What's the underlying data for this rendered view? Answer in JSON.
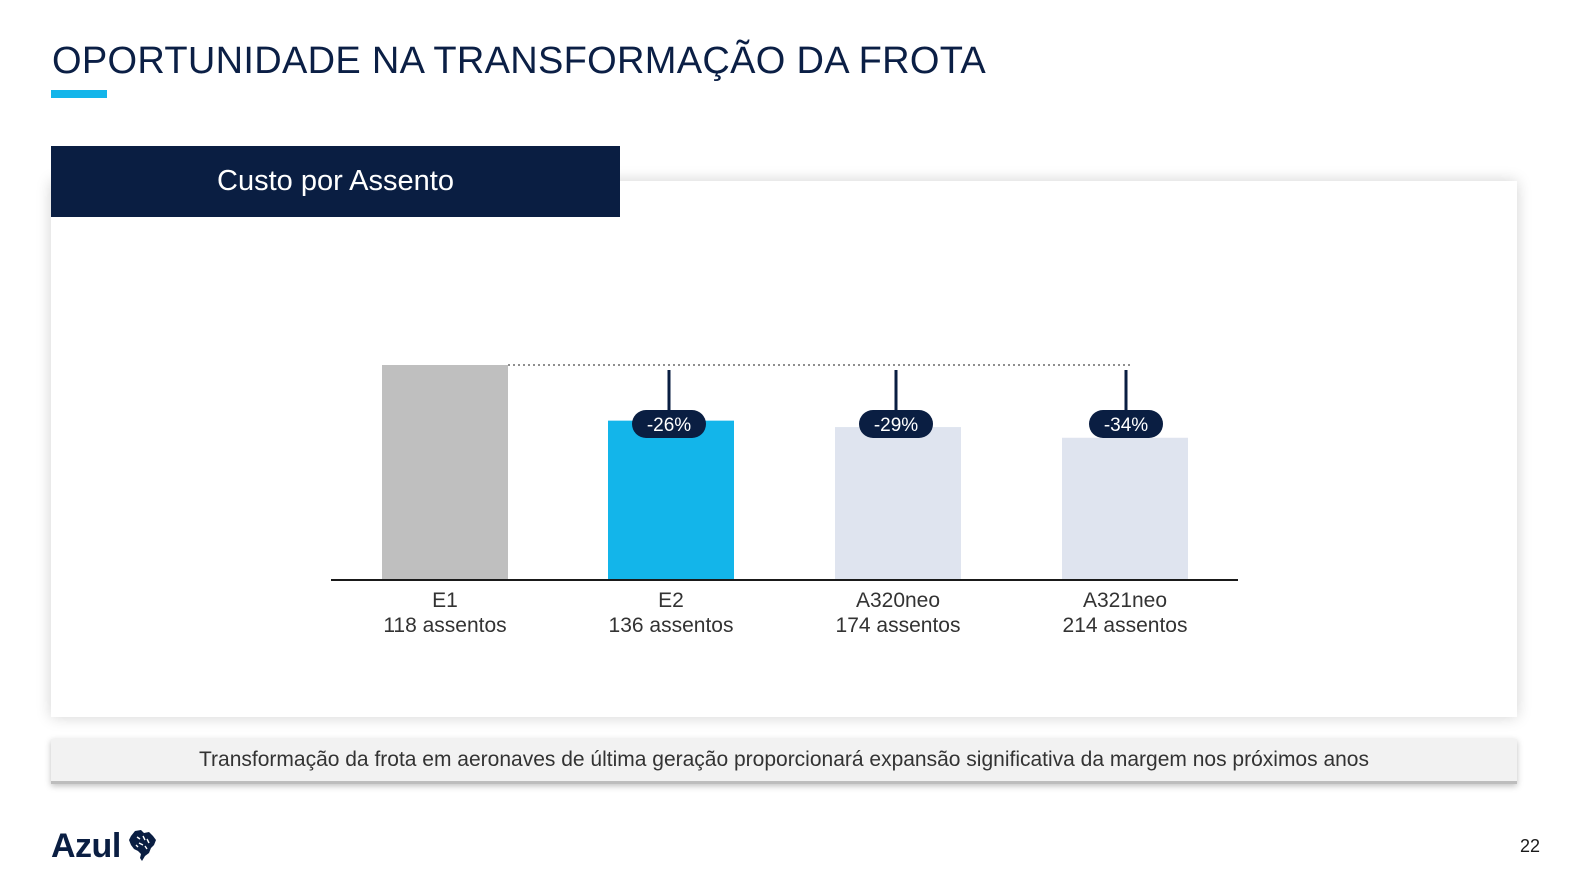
{
  "page": {
    "title": "OPORTUNIDADE NA TRANSFORMAÇÃO DA FROTA",
    "chart_header": "Custo por Assento",
    "footer_callout": "Transformação da frota em aeronaves de última geração proporcionará expansão significativa da margem nos próximos anos",
    "brand": "Azul",
    "page_number": "22"
  },
  "colors": {
    "navy": "#0a1e42",
    "accent_blue": "#13b5ea",
    "baseline_gray": "#bfbfbf",
    "light_bar": "#dfe4ef"
  },
  "chart_data": {
    "type": "bar",
    "title": "Custo por Assento",
    "categories": [
      "E1",
      "E2",
      "A320neo",
      "A321neo"
    ],
    "category_sublabels": [
      "118 assentos",
      "136 assentos",
      "174 assentos",
      "214 assentos"
    ],
    "values": [
      100,
      74,
      71,
      66
    ],
    "bar_colors": [
      "#bfbfbf",
      "#13b5ea",
      "#dfe4ef",
      "#dfe4ef"
    ],
    "reduction_labels": [
      "",
      "-26%",
      "-29%",
      "-34%"
    ],
    "reference_line": "E1",
    "ylim": [
      0,
      100
    ],
    "xlabel": "",
    "ylabel": "",
    "grid": false,
    "legend": "none"
  }
}
